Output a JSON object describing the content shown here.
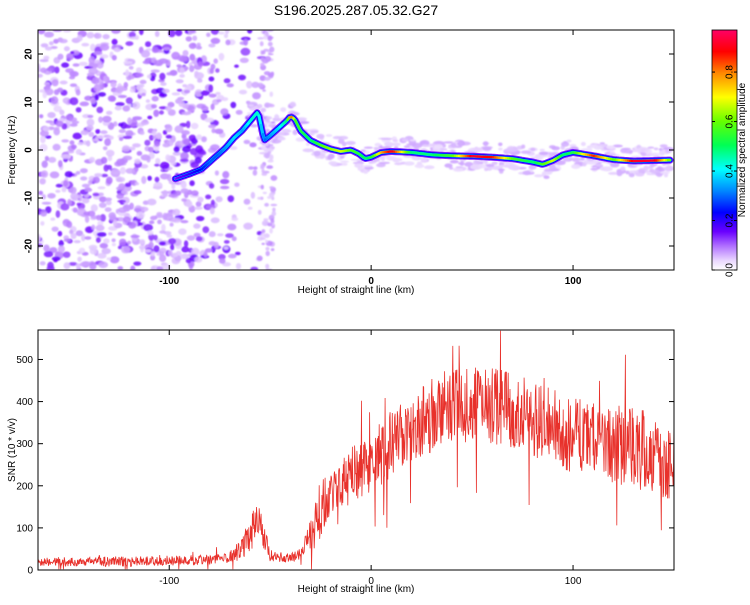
{
  "title": "S196.2025.287.05.32.G27",
  "colors": {
    "spectrum_low": "#e6d7fa",
    "spectrum_mid": "#7a33e6",
    "snr_line": "#e8312b",
    "frame": "#000000"
  },
  "chart_data": [
    {
      "type": "heatmap",
      "name": "spectrogram",
      "xlabel": "Height of straight line (km)",
      "ylabel": "Frequency (Hz)",
      "xlim": [
        -165,
        150
      ],
      "ylim": [
        -25,
        25
      ],
      "xticks": [
        -100,
        0,
        100
      ],
      "yticks": [
        -20,
        -10,
        0,
        10,
        20
      ],
      "colorbar": {
        "label": "Normalized spectral amplitude",
        "range": [
          0,
          0.97
        ],
        "ticks": [
          0.0,
          0.2,
          0.4,
          0.6,
          0.8
        ],
        "tick_labels": [
          "0.0",
          "0.2",
          "0.4",
          "0.6",
          "0.8"
        ]
      },
      "ridge": {
        "x": [
          -97,
          -90,
          -84,
          -80,
          -76,
          -72,
          -68,
          -64,
          -60,
          -56,
          -53,
          -50,
          -46,
          -42,
          -40,
          -38,
          -35,
          -30,
          -25,
          -20,
          -15,
          -10,
          -6,
          -3,
          0,
          5,
          10,
          20,
          30,
          40,
          50,
          60,
          70,
          80,
          85,
          90,
          95,
          100,
          110,
          120,
          130,
          140,
          148
        ],
        "y": [
          -6,
          -5,
          -4,
          -2.5,
          -1,
          0.5,
          2.5,
          4,
          6,
          8,
          2,
          3,
          4.5,
          6,
          7,
          6.5,
          4,
          2,
          1,
          0.2,
          -0.3,
          0,
          -0.8,
          -1.8,
          -1.5,
          -0.5,
          -0.3,
          -0.5,
          -1,
          -1.2,
          -1.3,
          -1.5,
          -1.8,
          -2.5,
          -3,
          -2.2,
          -1,
          -0.5,
          -1.2,
          -2,
          -2.3,
          -2.2,
          -2.1
        ]
      },
      "ridge_amplitude": [
        0.15,
        0.2,
        0.25,
        0.3,
        0.3,
        0.35,
        0.4,
        0.35,
        0.45,
        0.45,
        0.3,
        0.35,
        0.4,
        0.5,
        0.9,
        0.6,
        0.55,
        0.5,
        0.6,
        0.65,
        0.7,
        0.6,
        0.55,
        0.5,
        0.55,
        0.8,
        0.95,
        0.5,
        0.5,
        0.6,
        0.95,
        0.9,
        0.6,
        0.5,
        0.6,
        0.7,
        0.5,
        0.55,
        0.9,
        0.6,
        0.95,
        0.95,
        0.6
      ]
    },
    {
      "type": "line",
      "name": "snr",
      "xlabel": "Height of straight line (km)",
      "ylabel": "SNR (10 * v/v)",
      "xlim": [
        -165,
        150
      ],
      "ylim": [
        0,
        570
      ],
      "xticks": [
        -100,
        0,
        100
      ],
      "yticks": [
        0,
        100,
        200,
        300,
        400,
        500
      ],
      "envelope": {
        "x": [
          -165,
          -140,
          -120,
          -100,
          -80,
          -70,
          -64,
          -60,
          -57,
          -54,
          -50,
          -45,
          -40,
          -35,
          -30,
          -27,
          -25,
          -20,
          -15,
          -10,
          -5,
          0,
          10,
          20,
          30,
          40,
          50,
          60,
          70,
          80,
          90,
          100,
          110,
          120,
          130,
          140,
          150
        ],
        "base": [
          20,
          20,
          20,
          22,
          25,
          32,
          50,
          80,
          130,
          90,
          35,
          30,
          30,
          35,
          80,
          110,
          150,
          180,
          200,
          220,
          240,
          260,
          300,
          340,
          370,
          390,
          395,
          390,
          380,
          360,
          340,
          320,
          310,
          300,
          290,
          280,
          260
        ],
        "noise": [
          10,
          12,
          12,
          12,
          12,
          15,
          25,
          35,
          45,
          35,
          15,
          12,
          12,
          15,
          40,
          60,
          70,
          60,
          60,
          70,
          70,
          80,
          80,
          80,
          90,
          90,
          90,
          90,
          90,
          90,
          90,
          90,
          90,
          95,
          95,
          100,
          100
        ]
      }
    }
  ]
}
